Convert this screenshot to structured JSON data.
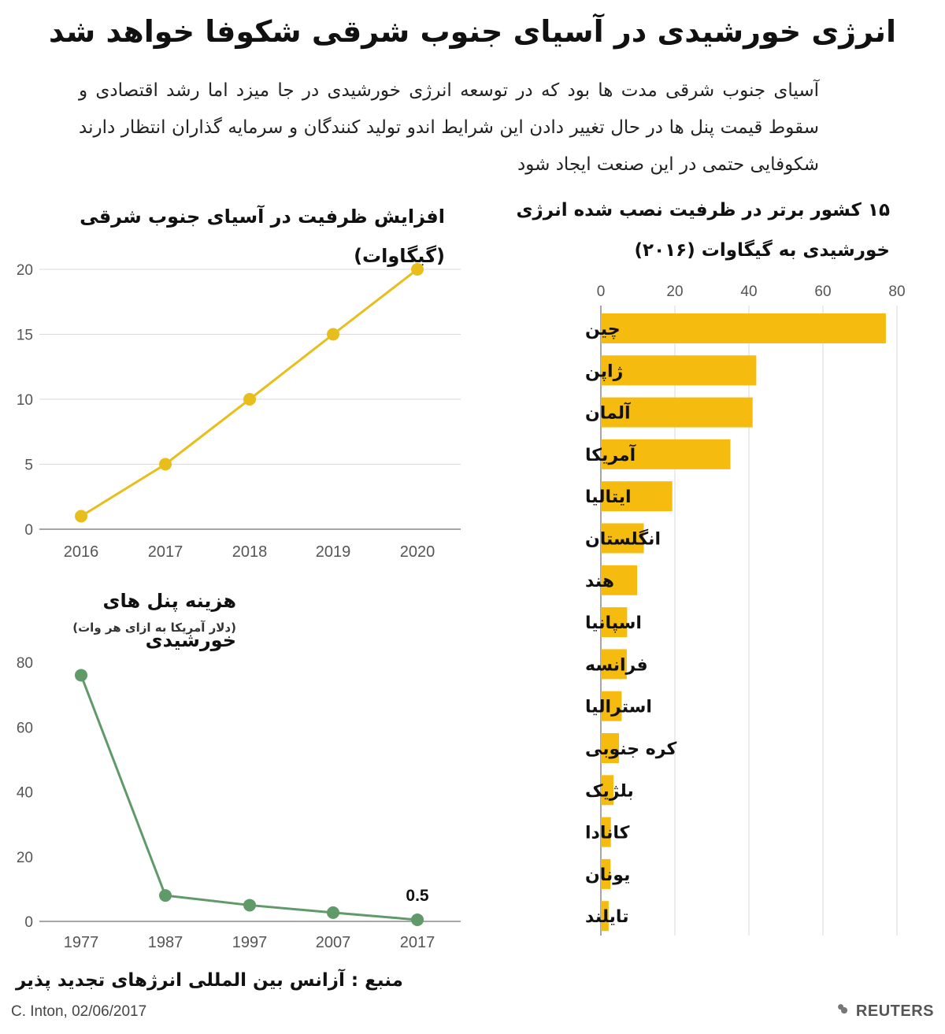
{
  "header": {
    "title": "انرژی خورشیدی در آسیای جنوب شرقی شکوفا خواهد شد",
    "intro": "آسیای جنوب شرقی مدت ها بود که در توسعه انرژی خورشیدی در جا میزد اما رشد اقتصادی و سقوط قیمت پنل ها در حال تغییر دادن این شرایط اندو تولید کنندگان و سرمایه گذاران انتظار دارند شکوفایی حتمی در این صنعت ایجاد شود"
  },
  "footer": {
    "source": "منبع : آزانس بین المللی انرژهای تجدید پذیر",
    "credit": "C. Inton, 02/06/2017",
    "logo": "REUTERS"
  },
  "colors": {
    "yellow": "#f5bb0e",
    "line_yellow": "#e8be1c",
    "green": "#5f9a68",
    "grid": "#d9d9d9",
    "axis": "#888888"
  },
  "chart_data": [
    {
      "type": "line",
      "title": "افزایش ظرفیت در آسیای جنوب شرقی (گیگاوات)",
      "x": [
        "2016",
        "2017",
        "2018",
        "2019",
        "2020"
      ],
      "series": [
        {
          "values": [
            1,
            5,
            10,
            15,
            20
          ]
        }
      ],
      "ylim": [
        0,
        20
      ],
      "yticks": [
        0,
        5,
        10,
        15,
        20
      ],
      "grid": true
    },
    {
      "type": "line",
      "title": "هزینه پنل های خورشیدی",
      "subtitle": "(دلار آمریکا به ازای هر وات)",
      "x": [
        "1977",
        "1987",
        "1997",
        "2007",
        "2017"
      ],
      "series": [
        {
          "values": [
            76,
            8,
            5,
            2.7,
            0.5
          ]
        }
      ],
      "ylim": [
        0,
        80
      ],
      "yticks": [
        0,
        20,
        40,
        60,
        80
      ],
      "annotation": "0.5",
      "grid": false
    },
    {
      "type": "bar",
      "orientation": "horizontal",
      "title": "۱۵ کشور برتر در ظرفیت نصب شده انرژی خورشیدی به گیگاوات (۲۰۱۶)",
      "categories": [
        "چین",
        "ژاپن",
        "آلمان",
        "آمریکا",
        "ایتالیا",
        "انگلستان",
        "هند",
        "اسپانیا",
        "فرانسه",
        "استرالیا",
        "کره جنوبی",
        "بلژیک",
        "کانادا",
        "یونان",
        "تایلند"
      ],
      "values": [
        77,
        42,
        41,
        35,
        19.3,
        11.6,
        9.8,
        7.1,
        7.0,
        5.6,
        4.9,
        3.4,
        2.7,
        2.6,
        2.1
      ],
      "xlim": [
        0,
        80
      ],
      "xticks": [
        0,
        20,
        40,
        60,
        80
      ],
      "grid": true
    }
  ]
}
